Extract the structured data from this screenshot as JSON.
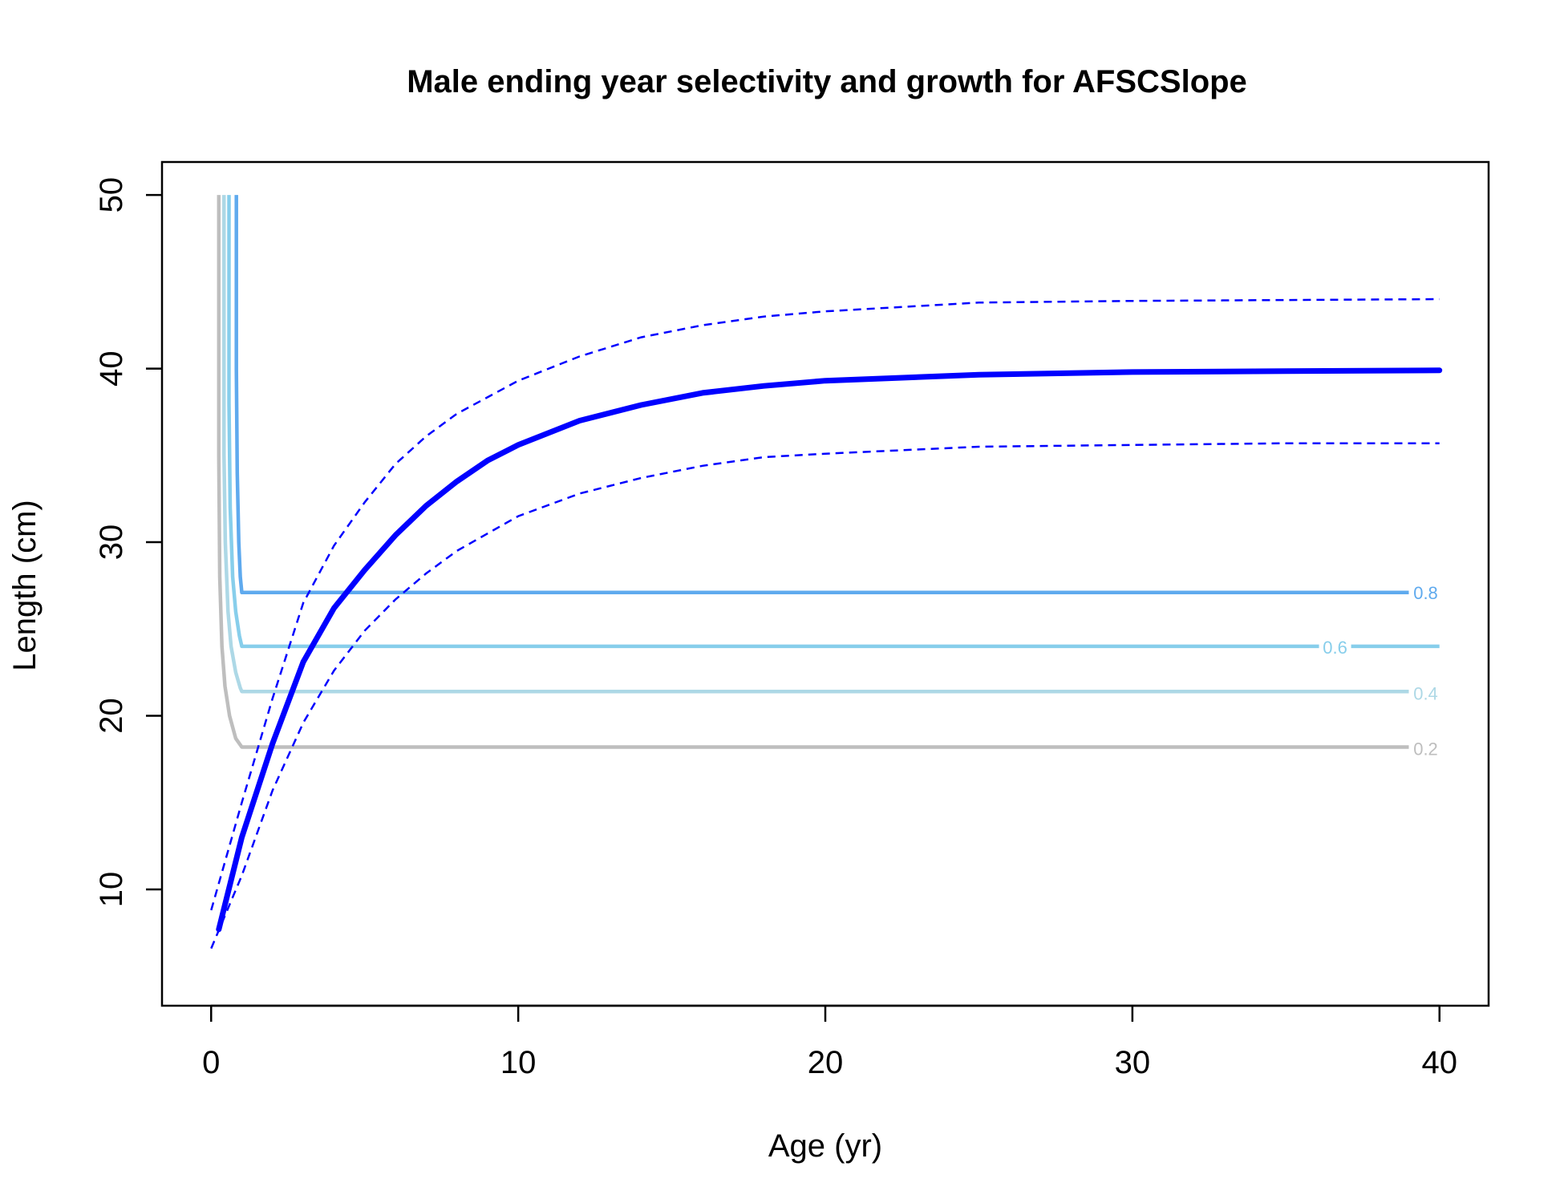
{
  "chart_data": {
    "type": "line",
    "title": "Male ending year selectivity and growth for AFSCSlope",
    "xlabel": "Age (yr)",
    "ylabel": "Length (cm)",
    "xlim": [
      -1.6,
      41.6
    ],
    "ylim": [
      3.3,
      51.9
    ],
    "xticks": [
      0,
      10,
      20,
      30,
      40
    ],
    "yticks": [
      10,
      20,
      30,
      40,
      50
    ],
    "grid": false,
    "legend": "none",
    "growth": {
      "mean": {
        "color": "#0000FF",
        "x": [
          0.25,
          1,
          2,
          3,
          4,
          5,
          6,
          7,
          8,
          9,
          10,
          12,
          14,
          16,
          18,
          20,
          25,
          30,
          35,
          40
        ],
        "y": [
          7.7,
          13.0,
          18.4,
          23.1,
          26.2,
          28.4,
          30.4,
          32.1,
          33.5,
          34.7,
          35.6,
          37.0,
          37.9,
          38.6,
          39.0,
          39.3,
          39.65,
          39.8,
          39.85,
          39.9
        ]
      },
      "upper": {
        "color": "#0000FF",
        "x": [
          0,
          1,
          2,
          3,
          4,
          5,
          6,
          7,
          8,
          10,
          12,
          14,
          16,
          18,
          20,
          25,
          30,
          35,
          40
        ],
        "y": [
          8.8,
          15.0,
          21.0,
          26.5,
          29.8,
          32.3,
          34.5,
          36.1,
          37.4,
          39.3,
          40.7,
          41.8,
          42.5,
          43.0,
          43.3,
          43.8,
          43.9,
          43.95,
          44.0
        ]
      },
      "lower": {
        "color": "#0000FF",
        "x": [
          0,
          1,
          2,
          3,
          4,
          5,
          6,
          7,
          8,
          10,
          12,
          14,
          16,
          18,
          20,
          25,
          30,
          35,
          40
        ],
        "y": [
          6.6,
          10.8,
          15.7,
          19.6,
          22.6,
          24.9,
          26.7,
          28.2,
          29.5,
          31.5,
          32.8,
          33.7,
          34.4,
          34.9,
          35.1,
          35.5,
          35.6,
          35.7,
          35.7
        ]
      }
    },
    "selectivity_contours": [
      {
        "level": "0.2",
        "color": "#BEBEBE",
        "x": [
          0.25,
          0.25,
          0.28,
          0.35,
          0.45,
          0.6,
          0.8,
          1.0,
          39.0
        ],
        "y": [
          50.0,
          35.0,
          28.0,
          24.0,
          21.7,
          20.0,
          18.7,
          18.2,
          18.2
        ]
      },
      {
        "level": "0.4",
        "color": "#ADD8E6",
        "x": [
          0.42,
          0.42,
          0.46,
          0.55,
          0.65,
          0.8,
          0.95,
          1.0,
          39.0
        ],
        "y": [
          50.0,
          35.0,
          30.0,
          26.0,
          24.0,
          22.5,
          21.6,
          21.4,
          21.4
        ]
      },
      {
        "level": "0.6",
        "color": "#87CEEB",
        "x": [
          0.58,
          0.58,
          0.62,
          0.7,
          0.8,
          0.92,
          1.0,
          40.0
        ],
        "y": [
          50.0,
          38.0,
          32.0,
          28.0,
          26.0,
          24.6,
          24.0,
          24.0
        ]
      },
      {
        "level": "0.8",
        "color": "#5FAAEE",
        "x": [
          0.82,
          0.82,
          0.85,
          0.9,
          0.95,
          1.0,
          39.0
        ],
        "y": [
          50.0,
          40.0,
          34.0,
          30.0,
          28.0,
          27.1,
          27.1
        ]
      }
    ],
    "contour_labels": [
      {
        "text": "0.8",
        "x": 39.55,
        "y": 27.1,
        "color": "#5FAAEE"
      },
      {
        "text": "0.6",
        "x": 36.6,
        "y": 23.95,
        "color": "#87CEEB"
      },
      {
        "text": "0.4",
        "x": 39.55,
        "y": 21.3,
        "color": "#ADD8E6"
      },
      {
        "text": "0.2",
        "x": 39.55,
        "y": 18.1,
        "color": "#BEBEBE"
      }
    ]
  }
}
